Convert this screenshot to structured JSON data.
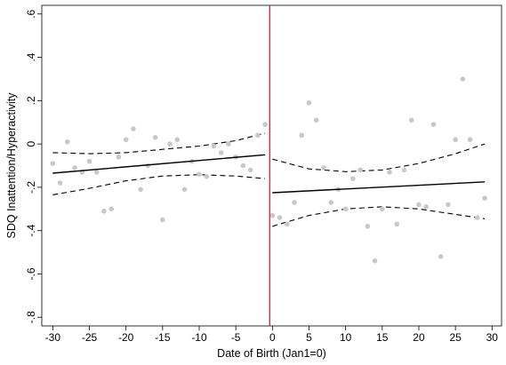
{
  "chart_data": {
    "type": "scatter",
    "title": "",
    "xlabel": "Date of Birth (Jan1=0)",
    "ylabel": "SDQ Inattention/Hyperactivity",
    "xlim": [
      -31.5,
      31.3
    ],
    "ylim": [
      -0.84,
      0.64
    ],
    "x_ticks": [
      -30,
      -25,
      -20,
      -15,
      -10,
      -5,
      0,
      5,
      10,
      15,
      20,
      25,
      30
    ],
    "x_tick_labels": [
      "-30",
      "-25",
      "-20",
      "-15",
      "-10",
      "-5",
      "0",
      "5",
      "10",
      "15",
      "20",
      "25",
      "30"
    ],
    "y_ticks": [
      0.6,
      0.4,
      0.2,
      0.0,
      -0.2,
      -0.4,
      -0.6,
      -0.8
    ],
    "y_tick_labels": [
      ".6",
      ".4",
      ".2",
      "0",
      "-.2",
      "-.4",
      "-.6",
      "-.8"
    ],
    "grid": false,
    "cutoff_x": 0,
    "colors": {
      "points": "#c8c8c8",
      "fit": "#000000",
      "ci": "#000000",
      "cutoff": "#c0334d",
      "frame": "#000000"
    },
    "points": [
      [
        -30,
        -0.09
      ],
      [
        -29,
        -0.18
      ],
      [
        -28,
        0.01
      ],
      [
        -27,
        -0.11
      ],
      [
        -26,
        -0.13
      ],
      [
        -25,
        -0.08
      ],
      [
        -24,
        -0.13
      ],
      [
        -23,
        -0.31
      ],
      [
        -22,
        -0.3
      ],
      [
        -21,
        -0.06
      ],
      [
        -20,
        0.02
      ],
      [
        -19,
        0.07
      ],
      [
        -18,
        -0.21
      ],
      [
        -17,
        -0.1
      ],
      [
        -16,
        0.03
      ],
      [
        -15,
        -0.35
      ],
      [
        -14,
        0.0
      ],
      [
        -13,
        0.02
      ],
      [
        -12,
        -0.21
      ],
      [
        -11,
        -0.08
      ],
      [
        -10,
        -0.14
      ],
      [
        -9,
        -0.15
      ],
      [
        -8,
        -0.01
      ],
      [
        -7,
        -0.04
      ],
      [
        -6,
        0.0
      ],
      [
        -5,
        -0.06
      ],
      [
        -4,
        -0.1
      ],
      [
        -3,
        -0.12
      ],
      [
        -2,
        0.04
      ],
      [
        -1,
        0.09
      ],
      [
        0,
        -0.33
      ],
      [
        1,
        -0.34
      ],
      [
        2,
        -0.37
      ],
      [
        3,
        -0.27
      ],
      [
        4,
        0.04
      ],
      [
        5,
        0.19
      ],
      [
        6,
        0.11
      ],
      [
        7,
        -0.11
      ],
      [
        8,
        -0.27
      ],
      [
        9,
        -0.21
      ],
      [
        10,
        -0.3
      ],
      [
        11,
        -0.16
      ],
      [
        12,
        -0.12
      ],
      [
        13,
        -0.38
      ],
      [
        14,
        -0.54
      ],
      [
        15,
        -0.3
      ],
      [
        16,
        -0.13
      ],
      [
        17,
        -0.37
      ],
      [
        18,
        -0.12
      ],
      [
        19,
        0.11
      ],
      [
        20,
        -0.28
      ],
      [
        21,
        -0.29
      ],
      [
        22,
        0.09
      ],
      [
        23,
        -0.52
      ],
      [
        24,
        -0.28
      ],
      [
        25,
        0.02
      ],
      [
        26,
        0.3
      ],
      [
        27,
        0.02
      ],
      [
        28,
        -0.34
      ],
      [
        29,
        -0.25
      ]
    ],
    "fit_left": {
      "x": [
        -30,
        -1
      ],
      "y": [
        -0.135,
        -0.05
      ]
    },
    "fit_right": {
      "x": [
        0,
        29
      ],
      "y": [
        -0.225,
        -0.175
      ]
    },
    "ci_left_upper": {
      "x": [
        -30,
        -25,
        -20,
        -15,
        -10,
        -5,
        -1
      ],
      "y": [
        -0.04,
        -0.045,
        -0.04,
        -0.025,
        -0.01,
        0.015,
        0.05
      ]
    },
    "ci_left_lower": {
      "x": [
        -30,
        -25,
        -20,
        -15,
        -10,
        -5,
        -1
      ],
      "y": [
        -0.235,
        -0.205,
        -0.17,
        -0.148,
        -0.142,
        -0.148,
        -0.16
      ]
    },
    "ci_right_upper": {
      "x": [
        0,
        5,
        10,
        15,
        20,
        25,
        29
      ],
      "y": [
        -0.07,
        -0.115,
        -0.128,
        -0.12,
        -0.09,
        -0.045,
        0.0
      ]
    },
    "ci_right_lower": {
      "x": [
        0,
        5,
        10,
        15,
        20,
        25,
        29
      ],
      "y": [
        -0.38,
        -0.33,
        -0.3,
        -0.29,
        -0.3,
        -0.325,
        -0.345
      ]
    }
  }
}
